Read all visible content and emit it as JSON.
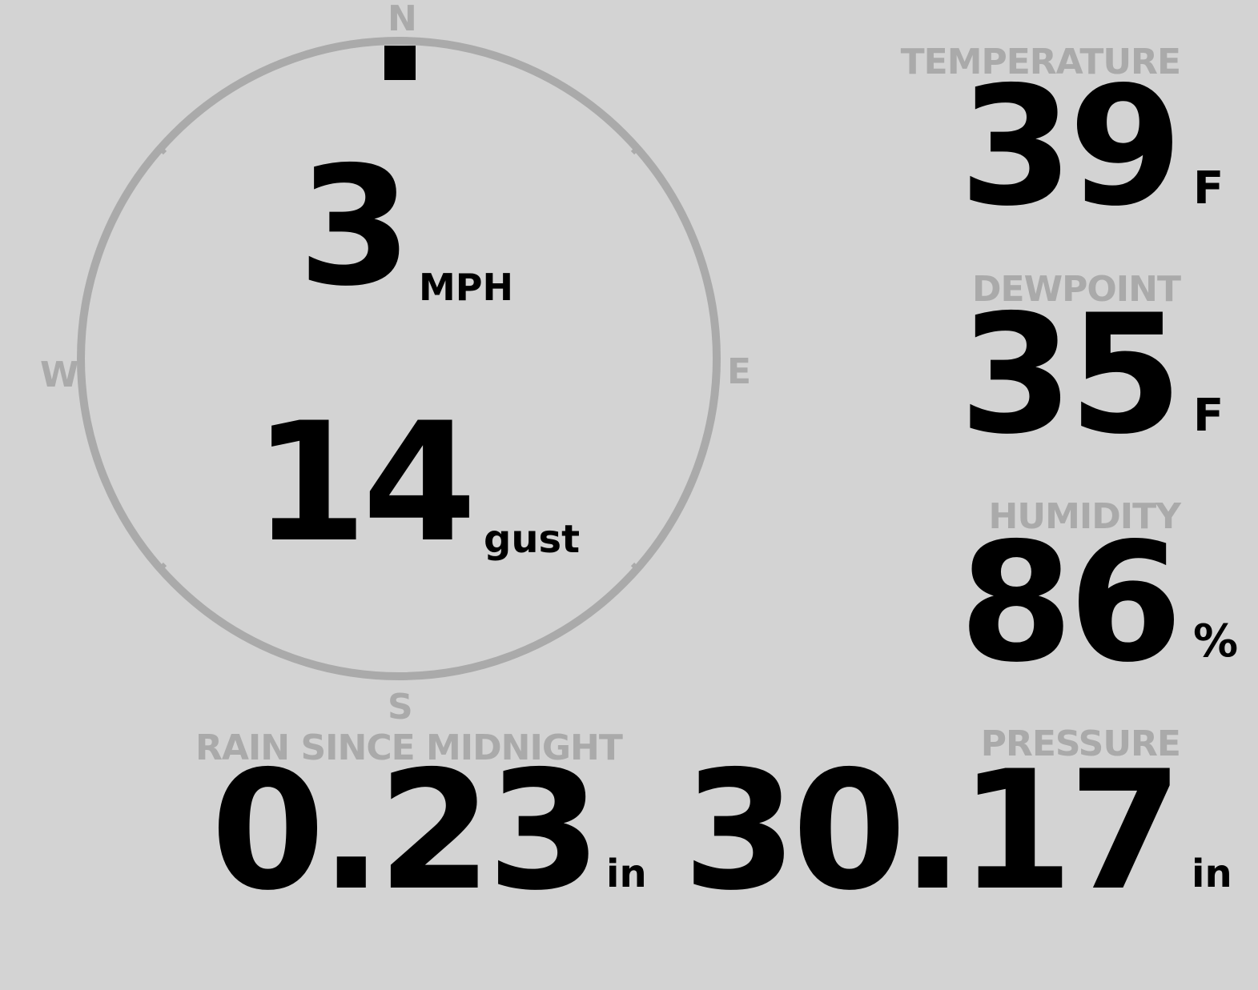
{
  "compass": {
    "north": "N",
    "south": "S",
    "east": "E",
    "west": "W",
    "direction_deg": 0,
    "ring_color": "#aaaaaa",
    "needle_color": "#000000"
  },
  "wind": {
    "speed": "3",
    "speed_unit": "MPH",
    "gust": "14",
    "gust_unit": "gust"
  },
  "temperature": {
    "label": "TEMPERATURE",
    "value": "39",
    "unit": "F"
  },
  "dewpoint": {
    "label": "DEWPOINT",
    "value": "35",
    "unit": "F"
  },
  "humidity": {
    "label": "HUMIDITY",
    "value": "86",
    "unit": "%"
  },
  "rain": {
    "label": "RAIN SINCE MIDNIGHT",
    "value": "0.23",
    "unit": "in"
  },
  "pressure": {
    "label": "PRESSURE",
    "value": "30.17",
    "unit": "in"
  },
  "colors": {
    "background": "#d3d3d3",
    "label": "#aaaaaa",
    "value": "#000000"
  }
}
